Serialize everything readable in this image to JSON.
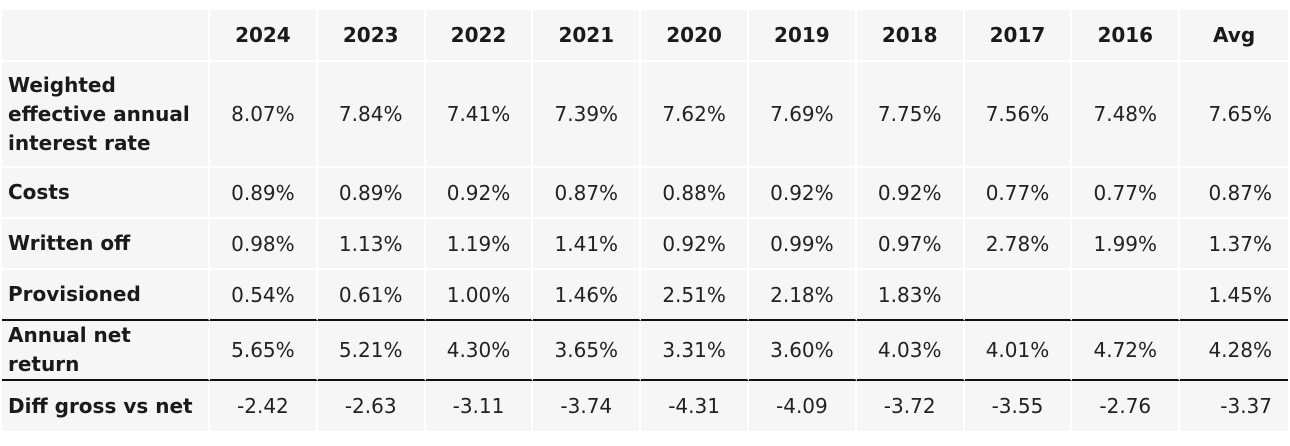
{
  "table": {
    "headers": [
      "",
      "2024",
      "2023",
      "2022",
      "2021",
      "2020",
      "2019",
      "2018",
      "2017",
      "2016",
      "Avg"
    ],
    "rows": [
      {
        "label": "Weighted effective annual interest rate",
        "values": [
          "8.07%",
          "7.84%",
          "7.41%",
          "7.39%",
          "7.62%",
          "7.69%",
          "7.75%",
          "7.56%",
          "7.48%",
          "7.65%"
        ]
      },
      {
        "label": "Costs",
        "values": [
          "0.89%",
          "0.89%",
          "0.92%",
          "0.87%",
          "0.88%",
          "0.92%",
          "0.92%",
          "0.77%",
          "0.77%",
          "0.87%"
        ]
      },
      {
        "label": "Written off",
        "values": [
          "0.98%",
          "1.13%",
          "1.19%",
          "1.41%",
          "0.92%",
          "0.99%",
          "0.97%",
          "2.78%",
          "1.99%",
          "1.37%"
        ]
      },
      {
        "label": "Provisioned",
        "values": [
          "0.54%",
          "0.61%",
          "1.00%",
          "1.46%",
          "2.51%",
          "2.18%",
          "1.83%",
          "",
          "",
          "1.45%"
        ]
      },
      {
        "label": "Annual net return",
        "values": [
          "5.65%",
          "5.21%",
          "4.30%",
          "3.65%",
          "3.31%",
          "3.60%",
          "4.03%",
          "4.01%",
          "4.72%",
          "4.28%"
        ]
      },
      {
        "label": "Diff gross vs net",
        "values": [
          "-2.42",
          "-2.63",
          "-3.11",
          "-3.74",
          "-4.31",
          "-4.09",
          "-3.72",
          "-3.55",
          "-2.76",
          "-3.37"
        ]
      }
    ]
  }
}
